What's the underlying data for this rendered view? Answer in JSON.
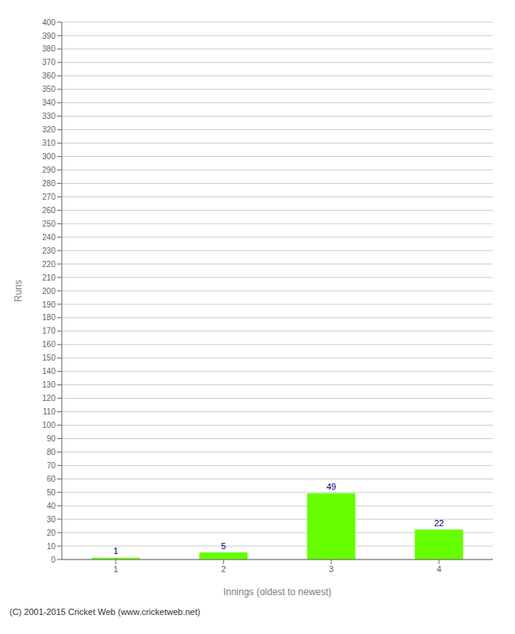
{
  "chart_data": {
    "type": "bar",
    "categories": [
      "1",
      "2",
      "3",
      "4"
    ],
    "values": [
      1,
      5,
      49,
      22
    ],
    "color": "#66ff00",
    "xlabel": "Innings (oldest to newest)",
    "ylabel": "Runs",
    "ylim": [
      0,
      400
    ],
    "yticks": [
      0,
      10,
      20,
      30,
      40,
      50,
      60,
      70,
      80,
      90,
      100,
      110,
      120,
      130,
      140,
      150,
      160,
      170,
      180,
      190,
      200,
      210,
      220,
      230,
      240,
      250,
      260,
      270,
      280,
      290,
      300,
      310,
      320,
      330,
      340,
      350,
      360,
      370,
      380,
      390,
      400
    ],
    "grid": true,
    "data_labels": true,
    "annotations": [
      "(C) 2001-2015 Cricket Web (www.cricketweb.net)"
    ]
  }
}
